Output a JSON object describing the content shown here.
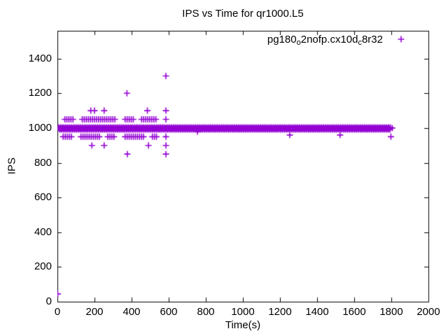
{
  "chart_data": {
    "type": "scatter",
    "title": "IPS vs Time for qr1000.L5",
    "xlabel": "Time(s)",
    "ylabel": "IPS",
    "xlim": [
      0,
      2000
    ],
    "ylim": [
      0,
      1560
    ],
    "xticks": [
      0,
      200,
      400,
      600,
      800,
      1000,
      1200,
      1400,
      1600,
      1800,
      2000
    ],
    "yticks": [
      0,
      200,
      400,
      600,
      800,
      1000,
      1200,
      1400
    ],
    "grid": false,
    "background": "#ffffff",
    "axis_color": "#000000",
    "legend_position": "top-right-inside",
    "series": [
      {
        "name": "pg180_o2nofp.cx10d_c8r32",
        "name_parts": [
          {
            "text": "pg180",
            "sub": false
          },
          {
            "text": "o",
            "sub": true
          },
          {
            "text": "2nofp.cx10d",
            "sub": false
          },
          {
            "text": "c",
            "sub": true
          },
          {
            "text": "8r32",
            "sub": false
          }
        ],
        "marker": "plus",
        "color": "#9400D3",
        "points": [
          [
            2,
            45
          ],
          [
            180,
            1100
          ],
          [
            200,
            1100
          ],
          [
            252,
            1100
          ],
          [
            485,
            1100
          ],
          [
            585,
            1100
          ],
          [
            375,
            1200
          ],
          [
            585,
            1300
          ],
          [
            186,
            900
          ],
          [
            252,
            900
          ],
          [
            491,
            900
          ],
          [
            585,
            900
          ],
          [
            377,
            850
          ],
          [
            585,
            850
          ],
          [
            585,
            1050
          ],
          [
            585,
            950
          ],
          [
            755,
            980
          ],
          [
            1253,
            960
          ],
          [
            1524,
            960
          ],
          [
            1798,
            950
          ],
          [
            1805,
            1000
          ]
        ],
        "dense_runs": [
          {
            "y": 1004,
            "from": 5,
            "to": 1795,
            "step": 10
          },
          {
            "y": 998,
            "from": 9,
            "to": 1795,
            "step": 10
          },
          {
            "y": 992,
            "from": 13,
            "to": 1795,
            "step": 10
          },
          {
            "y": 1050,
            "from": 40,
            "to": 92,
            "step": 11
          },
          {
            "y": 1050,
            "from": 134,
            "to": 313,
            "step": 11
          },
          {
            "y": 1050,
            "from": 365,
            "to": 412,
            "step": 11
          },
          {
            "y": 1050,
            "from": 454,
            "to": 541,
            "step": 11
          },
          {
            "y": 950,
            "from": 31,
            "to": 85,
            "step": 11
          },
          {
            "y": 950,
            "from": 127,
            "to": 230,
            "step": 11
          },
          {
            "y": 950,
            "from": 272,
            "to": 313,
            "step": 11
          },
          {
            "y": 950,
            "from": 365,
            "to": 470,
            "step": 11
          },
          {
            "y": 950,
            "from": 512,
            "to": 541,
            "step": 11
          }
        ]
      }
    ]
  }
}
